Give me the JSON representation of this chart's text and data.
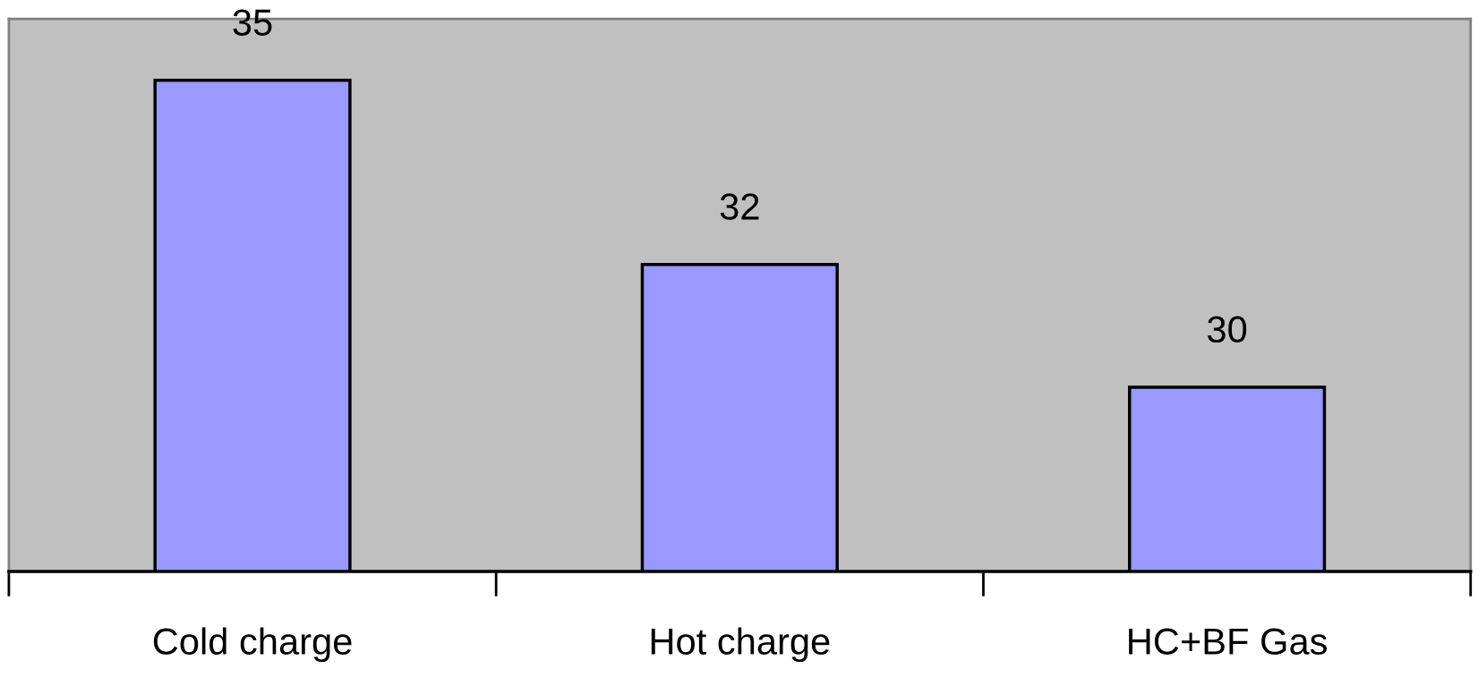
{
  "chart_data": {
    "type": "bar",
    "categories": [
      "Cold charge",
      "Hot charge",
      "HC+BF Gas"
    ],
    "values": [
      35,
      32,
      30
    ],
    "color": "#9999ff",
    "ylim": [
      27,
      36
    ],
    "data_labels": true,
    "tick_labels": "x",
    "grid": false,
    "legend": false
  }
}
